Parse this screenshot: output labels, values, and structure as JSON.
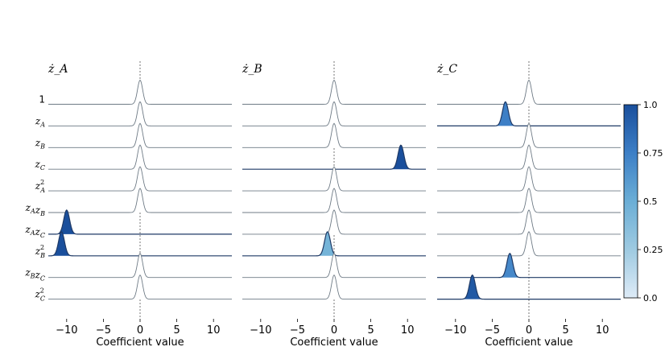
{
  "chart_data": {
    "type": "ridgeline",
    "rows": [
      "1",
      "z_A",
      "z_B",
      "z_C",
      "z_A^2",
      "z_A z_B",
      "z_A z_C",
      "z_B^2",
      "z_B z_C",
      "z_C^2"
    ],
    "xlabel": "Coefficient value",
    "xlim": [
      -12.5,
      12.5
    ],
    "xticks": [
      -10,
      -5,
      0,
      5,
      10
    ],
    "xtick_labels": [
      "−10",
      "−5",
      "0",
      "5",
      "10"
    ],
    "zero_line": true,
    "colorbar": {
      "min": 0.0,
      "max": 1.0,
      "ticks": [
        0.0,
        0.25,
        0.5,
        0.75,
        1.0
      ],
      "tick_labels": [
        "0.0",
        "0.25",
        "0.5",
        "0.75",
        "1.0"
      ],
      "colormap": "Blues",
      "color_low": "#deebf7",
      "color_high": "#08306b"
    },
    "panels": [
      {
        "title": "ż_A",
        "rows": [
          {
            "center": 0.0,
            "width": 0.35,
            "inclusion": 0.0
          },
          {
            "center": 0.0,
            "width": 0.35,
            "inclusion": 0.0
          },
          {
            "center": 0.0,
            "width": 0.35,
            "inclusion": 0.0
          },
          {
            "center": 0.0,
            "width": 0.35,
            "inclusion": 0.0
          },
          {
            "center": 0.0,
            "width": 0.35,
            "inclusion": 0.0
          },
          {
            "center": 0.0,
            "width": 0.35,
            "inclusion": 0.0
          },
          {
            "center": -10.0,
            "width": 0.4,
            "inclusion": 1.0
          },
          {
            "center": -10.7,
            "width": 0.4,
            "inclusion": 1.0
          },
          {
            "center": 0.0,
            "width": 0.35,
            "inclusion": 0.0
          },
          {
            "center": 0.0,
            "width": 0.35,
            "inclusion": 0.0
          }
        ]
      },
      {
        "title": "ż_B",
        "rows": [
          {
            "center": 0.0,
            "width": 0.35,
            "inclusion": 0.0
          },
          {
            "center": 0.0,
            "width": 0.35,
            "inclusion": 0.0
          },
          {
            "center": 0.0,
            "width": 0.35,
            "inclusion": 0.0
          },
          {
            "center": 9.1,
            "width": 0.4,
            "inclusion": 1.0
          },
          {
            "center": 0.0,
            "width": 0.35,
            "inclusion": 0.0
          },
          {
            "center": 0.0,
            "width": 0.35,
            "inclusion": 0.0
          },
          {
            "center": 0.0,
            "width": 0.35,
            "inclusion": 0.0
          },
          {
            "center": -0.9,
            "width": 0.4,
            "inclusion": 0.45
          },
          {
            "center": 0.0,
            "width": 0.35,
            "inclusion": 0.0
          },
          {
            "center": 0.0,
            "width": 0.35,
            "inclusion": 0.0
          }
        ]
      },
      {
        "title": "ż_C",
        "rows": [
          {
            "center": 0.0,
            "width": 0.35,
            "inclusion": 0.0
          },
          {
            "center": -3.2,
            "width": 0.4,
            "inclusion": 0.75
          },
          {
            "center": 0.0,
            "width": 0.35,
            "inclusion": 0.0
          },
          {
            "center": 0.0,
            "width": 0.35,
            "inclusion": 0.0
          },
          {
            "center": 0.0,
            "width": 0.35,
            "inclusion": 0.0
          },
          {
            "center": 0.0,
            "width": 0.35,
            "inclusion": 0.0
          },
          {
            "center": 0.0,
            "width": 0.35,
            "inclusion": 0.0
          },
          {
            "center": 0.0,
            "width": 0.35,
            "inclusion": 0.0
          },
          {
            "center": -2.6,
            "width": 0.4,
            "inclusion": 0.7
          },
          {
            "center": -7.7,
            "width": 0.4,
            "inclusion": 0.95
          }
        ]
      }
    ]
  }
}
